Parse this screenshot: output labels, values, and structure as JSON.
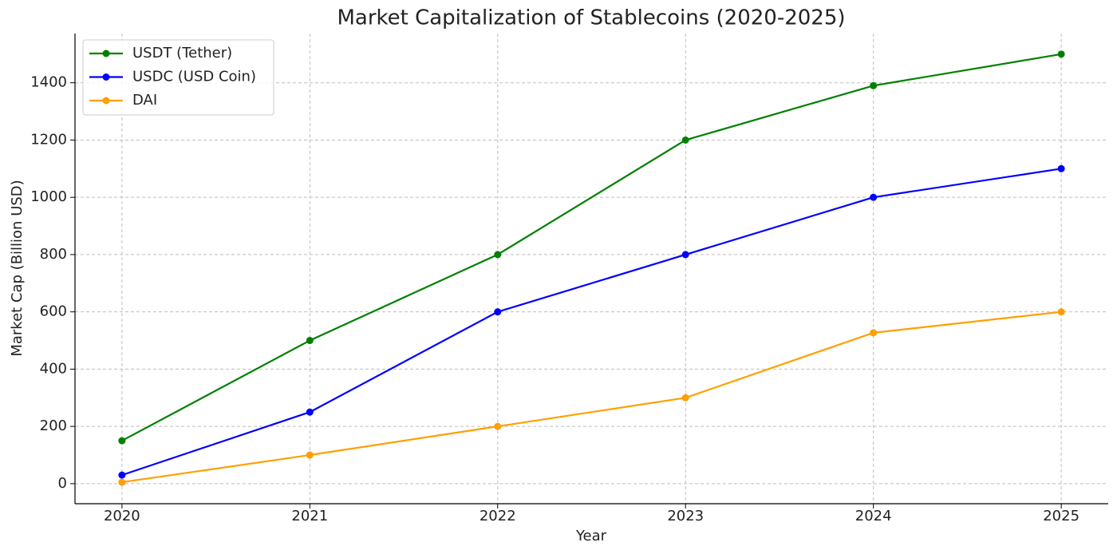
{
  "chart_data": {
    "type": "line",
    "title": "Market Capitalization of Stablecoins (2020-2025)",
    "x_label": "Year",
    "y_label": "Market Cap (Billion USD)",
    "x": [
      2020,
      2021,
      2022,
      2023,
      2024,
      2025
    ],
    "series": [
      {
        "name": "USDT (Tether)",
        "color": "#008000",
        "values": [
          150,
          500,
          800,
          1200,
          1390,
          1500
        ]
      },
      {
        "name": "USDC (USD Coin)",
        "color": "#0000ff",
        "values": [
          30,
          250,
          600,
          800,
          1000,
          1100
        ]
      },
      {
        "name": "DAI",
        "color": "#ff9f00",
        "values": [
          5,
          100,
          200,
          300,
          527,
          600
        ]
      }
    ],
    "xlim": [
      2019.75,
      2025.25
    ],
    "xticks": [
      2020,
      2021,
      2022,
      2023,
      2024,
      2025
    ],
    "ylim": [
      -70,
      1572
    ],
    "yticks": [
      0,
      200,
      400,
      600,
      800,
      1000,
      1200,
      1400
    ],
    "grid": true,
    "legend": "upper left"
  }
}
